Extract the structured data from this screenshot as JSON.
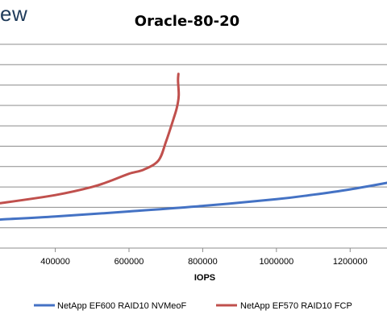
{
  "logo_text": "ew",
  "chart_data": {
    "type": "line",
    "title": "Oracle-80-20",
    "xlabel": "IOPS",
    "ylabel": "",
    "xlim": [
      250000,
      1300000
    ],
    "ylim": [
      0,
      10
    ],
    "x_ticks": [
      400000,
      600000,
      800000,
      1000000,
      1200000
    ],
    "x_tick_labels": [
      "400000",
      "600000",
      "800000",
      "1000000",
      "1200000"
    ],
    "y_gridlines": [
      1,
      2,
      3,
      4,
      5,
      6,
      7,
      8,
      9,
      10
    ],
    "grid": true,
    "legend_position": "bottom",
    "series": [
      {
        "name": "NetApp EF600 RAID10 NVMeoF",
        "color": "#4472c4",
        "points": [
          [
            250000,
            1.4
          ],
          [
            400000,
            1.55
          ],
          [
            600000,
            1.8
          ],
          [
            800000,
            2.07
          ],
          [
            1000000,
            2.4
          ],
          [
            1100000,
            2.62
          ],
          [
            1200000,
            2.88
          ],
          [
            1300000,
            3.2
          ]
        ]
      },
      {
        "name": "NetApp EF570 RAID10 FCP",
        "color": "#c0504d",
        "points": [
          [
            250000,
            2.2
          ],
          [
            400000,
            2.6
          ],
          [
            500000,
            3.0
          ],
          [
            550000,
            3.3
          ],
          [
            600000,
            3.65
          ],
          [
            640000,
            3.85
          ],
          [
            680000,
            4.3
          ],
          [
            700000,
            5.2
          ],
          [
            720000,
            6.3
          ],
          [
            730000,
            6.9
          ],
          [
            735000,
            7.5
          ],
          [
            733000,
            8.2
          ],
          [
            734000,
            8.55
          ]
        ]
      }
    ]
  }
}
